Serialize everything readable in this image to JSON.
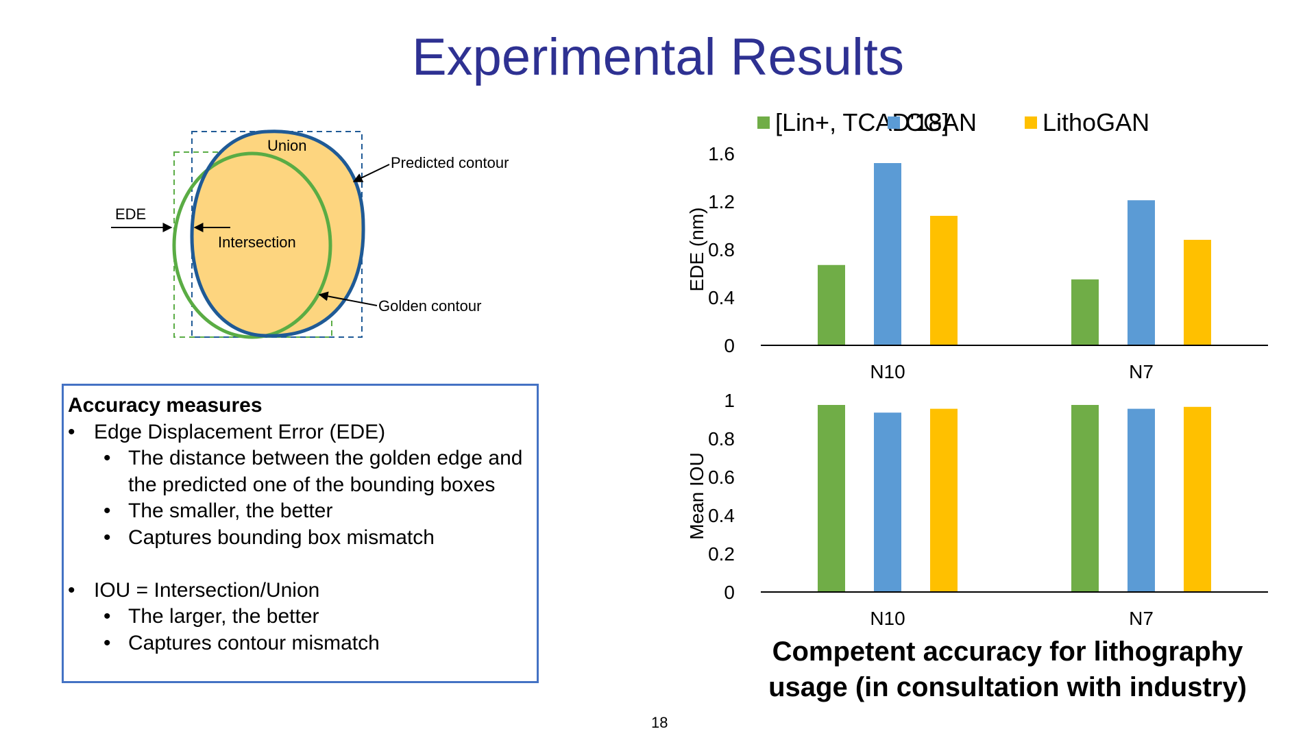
{
  "title": "Experimental Results",
  "diagram": {
    "union_label": "Union",
    "intersection_label": "Intersection",
    "ede_label": "EDE",
    "predicted_label": "Predicted contour",
    "golden_label": "Golden contour",
    "colors": {
      "predicted": "#1f5a96",
      "golden": "#5aac44",
      "fill": "#fdd57f"
    }
  },
  "measures": {
    "heading": "Accuracy measures",
    "ede": {
      "label": "Edge Displacement Error (EDE)",
      "points": [
        "The distance between the golden edge and the predicted one of the bounding boxes",
        "The smaller, the better",
        "Captures bounding box mismatch"
      ]
    },
    "iou": {
      "label": "IOU = Intersection/Union",
      "points": [
        "The larger, the better",
        "Captures contour mismatch"
      ]
    }
  },
  "legend": [
    "[Lin+, TCAD'18]",
    "CGAN",
    "LithoGAN"
  ],
  "chart_data": [
    {
      "type": "bar",
      "categories": [
        "N10",
        "N7"
      ],
      "series": [
        {
          "name": "[Lin+, TCAD'18]",
          "values": [
            0.67,
            0.55
          ],
          "color": "#70ad47"
        },
        {
          "name": "CGAN",
          "values": [
            1.52,
            1.21
          ],
          "color": "#5b9bd5"
        },
        {
          "name": "LithoGAN",
          "values": [
            1.08,
            0.88
          ],
          "color": "#ffc000"
        }
      ],
      "ylabel": "EDE (nm)",
      "ylim": [
        0,
        1.6
      ],
      "yticks": [
        "0",
        "0.4",
        "0.8",
        "1.2",
        "1.6"
      ],
      "gridlines": false
    },
    {
      "type": "bar",
      "categories": [
        "N10",
        "N7"
      ],
      "series": [
        {
          "name": "[Lin+, TCAD'18]",
          "values": [
            0.975,
            0.975
          ],
          "color": "#70ad47"
        },
        {
          "name": "CGAN",
          "values": [
            0.935,
            0.955
          ],
          "color": "#5b9bd5"
        },
        {
          "name": "LithoGAN",
          "values": [
            0.955,
            0.965
          ],
          "color": "#ffc000"
        }
      ],
      "ylabel": "Mean IOU",
      "ylim": [
        0,
        1
      ],
      "yticks": [
        "0",
        "0.2",
        "0.4",
        "0.6",
        "0.8",
        "1"
      ],
      "gridlines": false
    }
  ],
  "caption": "Competent accuracy for lithography usage (in consultation with industry)",
  "page_number": "18"
}
